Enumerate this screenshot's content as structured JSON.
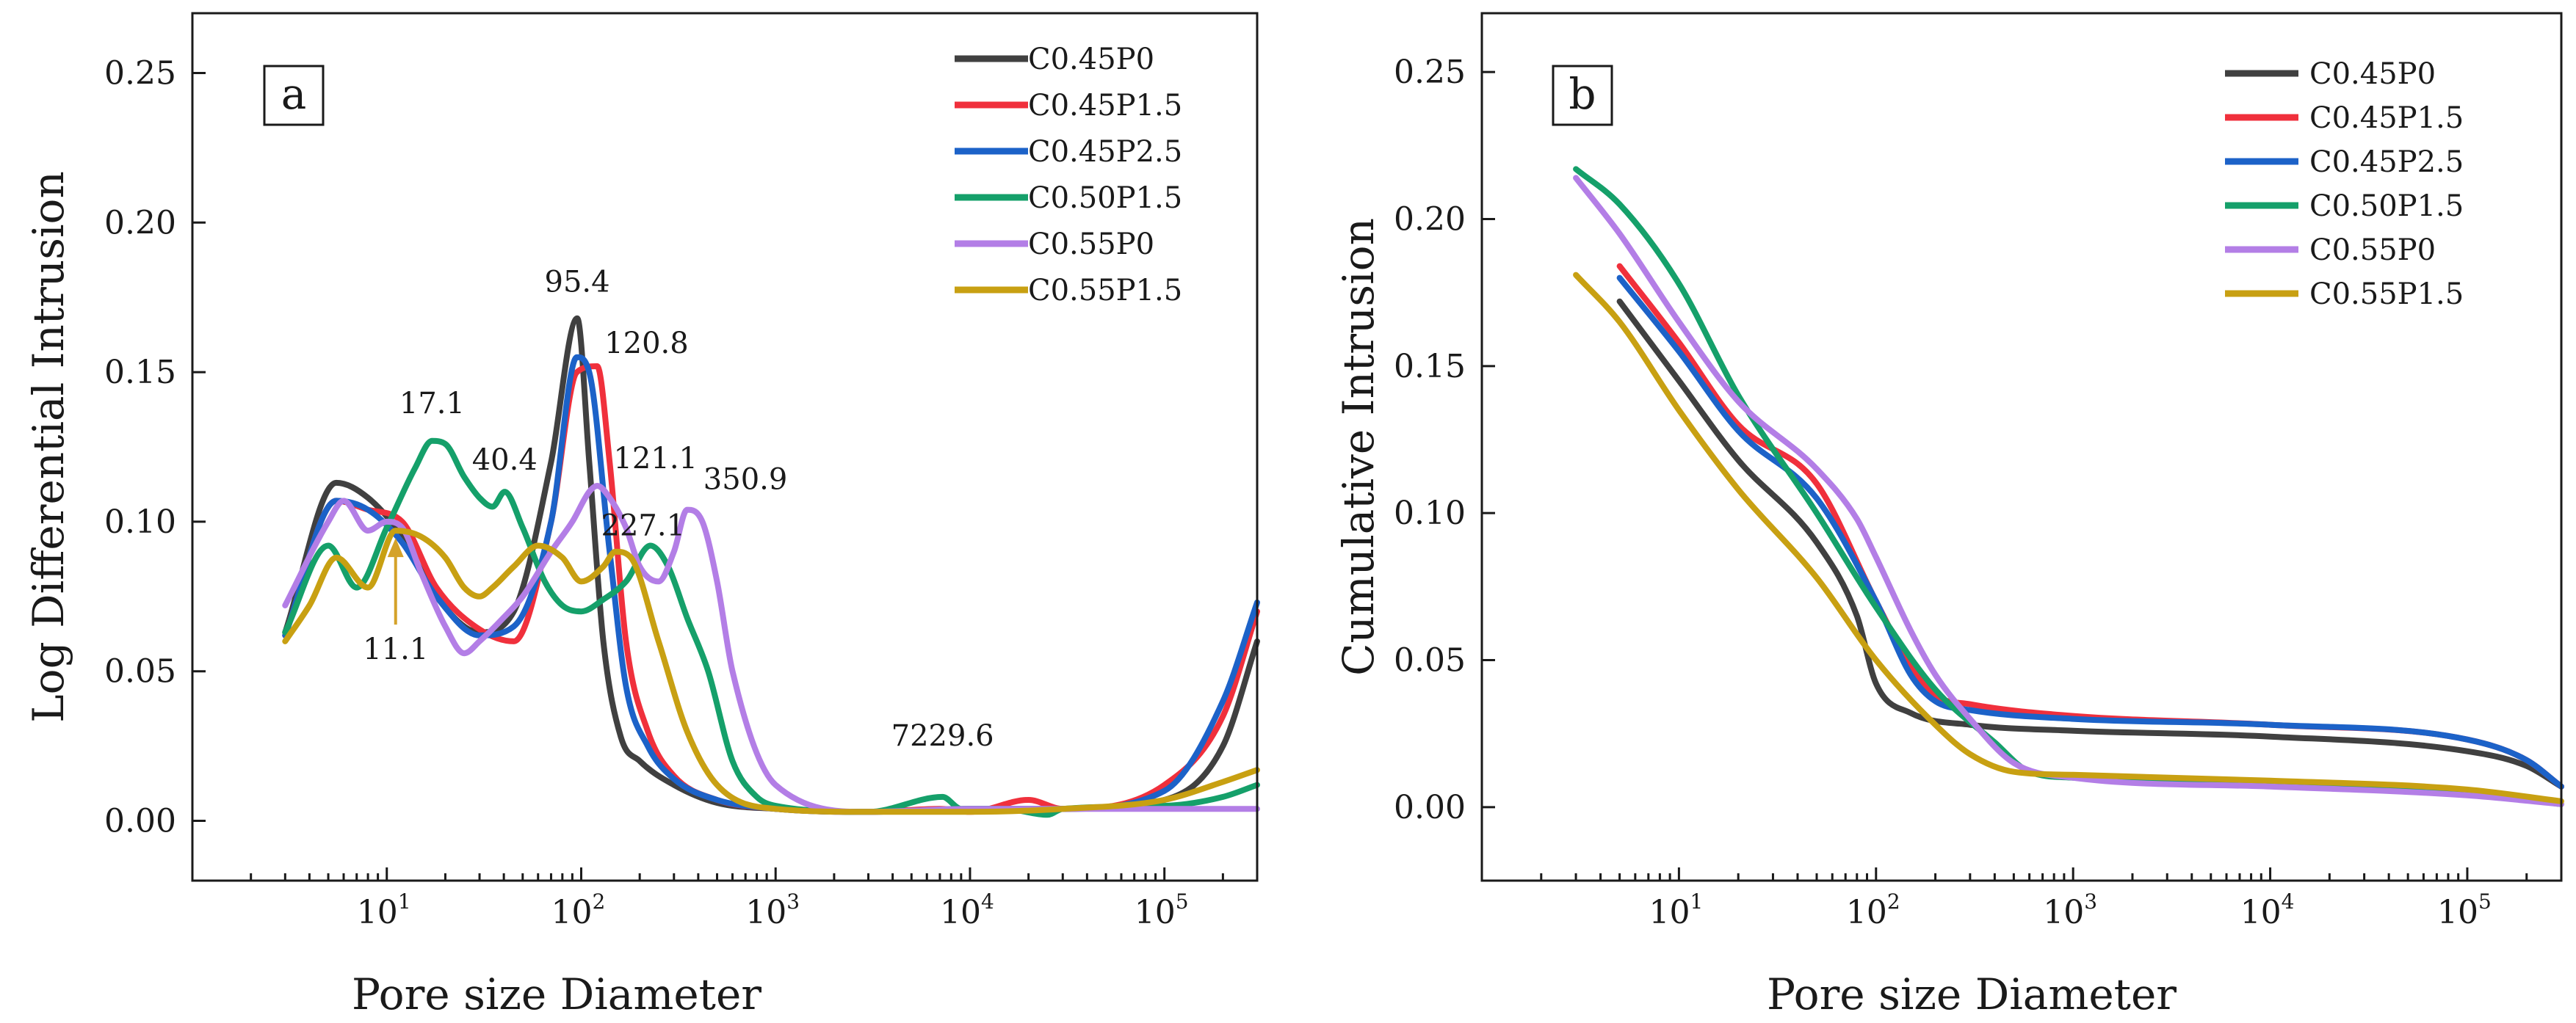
{
  "colors": {
    "C0.45P0": "#404040",
    "C0.45P1.5": "#f0303c",
    "C0.45P2.5": "#1c62c8",
    "C0.50P1.5": "#15a06a",
    "C0.55P0": "#b37ee6",
    "C0.55P1.5": "#c8a012",
    "arrow": "#d4a22a"
  },
  "chart_data": [
    {
      "type": "line",
      "panel": "a",
      "title": "",
      "xlabel": "Pore size Diameter",
      "ylabel": "Log Differential Intrusion",
      "xscale": "log",
      "xlim": [
        1,
        300000
      ],
      "ylim": [
        -0.02,
        0.27
      ],
      "xticks": [
        10,
        100,
        1000,
        10000,
        100000
      ],
      "xtick_labels": [
        {
          "base": "10",
          "exp": "1"
        },
        {
          "base": "10",
          "exp": "2"
        },
        {
          "base": "10",
          "exp": "3"
        },
        {
          "base": "10",
          "exp": "4"
        },
        {
          "base": "10",
          "exp": "5"
        }
      ],
      "yticks": [
        0.0,
        0.05,
        0.1,
        0.15,
        0.2,
        0.25
      ],
      "ytick_labels": [
        "0.00",
        "0.05",
        "0.10",
        "0.15",
        "0.20",
        "0.25"
      ],
      "legend": {
        "placement": "top-right",
        "entries": [
          "C0.45P0",
          "C0.45P1.5",
          "C0.45P2.5",
          "C0.50P1.5",
          "C0.55P0",
          "C0.55P1.5"
        ]
      },
      "annotations": [
        {
          "text": "95.4",
          "x": 95.4,
          "y": 0.168
        },
        {
          "text": "120.8",
          "x": 120.8,
          "y": 0.152
        },
        {
          "text": "17.1",
          "x": 17.1,
          "y": 0.127
        },
        {
          "text": "40.4",
          "x": 40.4,
          "y": 0.11
        },
        {
          "text": "121.1",
          "x": 121.1,
          "y": 0.112
        },
        {
          "text": "350.9",
          "x": 350.9,
          "y": 0.104
        },
        {
          "text": "227.1",
          "x": 227.1,
          "y": 0.092
        },
        {
          "text": "11.1",
          "x": 11.1,
          "y": 0.097,
          "arrow": true
        },
        {
          "text": "7229.6",
          "x": 7229.6,
          "y": 0.008
        }
      ],
      "series": [
        {
          "name": "C0.45P0",
          "x": [
            3,
            5.5,
            8,
            12,
            18,
            30,
            45,
            70,
            95.4,
            110,
            130,
            160,
            200,
            300,
            500,
            1000,
            3000,
            10000,
            30000,
            100000,
            200000,
            300000
          ],
          "y": [
            0.063,
            0.113,
            0.108,
            0.095,
            0.075,
            0.063,
            0.07,
            0.12,
            0.168,
            0.12,
            0.06,
            0.028,
            0.02,
            0.012,
            0.006,
            0.004,
            0.003,
            0.004,
            0.004,
            0.007,
            0.025,
            0.06
          ]
        },
        {
          "name": "C0.45P1.5",
          "x": [
            3,
            5.5,
            8,
            12,
            18,
            30,
            45,
            70,
            95,
            120.8,
            140,
            170,
            220,
            300,
            500,
            1000,
            3000,
            7000,
            10000,
            20000,
            30000,
            100000,
            200000,
            300000
          ],
          "y": [
            0.062,
            0.107,
            0.104,
            0.1,
            0.078,
            0.064,
            0.06,
            0.1,
            0.15,
            0.152,
            0.12,
            0.06,
            0.03,
            0.015,
            0.007,
            0.004,
            0.003,
            0.004,
            0.003,
            0.007,
            0.004,
            0.012,
            0.035,
            0.07
          ]
        },
        {
          "name": "C0.45P2.5",
          "x": [
            3,
            5.5,
            8,
            12,
            18,
            30,
            45,
            70,
            95,
            110,
            140,
            170,
            220,
            300,
            500,
            1000,
            3000,
            10000,
            30000,
            100000,
            200000,
            300000
          ],
          "y": [
            0.062,
            0.107,
            0.104,
            0.093,
            0.075,
            0.062,
            0.065,
            0.1,
            0.155,
            0.15,
            0.09,
            0.045,
            0.025,
            0.014,
            0.007,
            0.004,
            0.003,
            0.004,
            0.004,
            0.01,
            0.04,
            0.073
          ]
        },
        {
          "name": "C0.50P1.5",
          "x": [
            3,
            5,
            7,
            10,
            14,
            17.1,
            20,
            25,
            30,
            35,
            40.4,
            50,
            65,
            80,
            100,
            130,
            170,
            227.1,
            280,
            350,
            450,
            600,
            800,
            1000,
            3000,
            7229.6,
            9000,
            15000,
            25000,
            30000,
            100000,
            200000,
            300000
          ],
          "y": [
            0.063,
            0.092,
            0.078,
            0.098,
            0.118,
            0.127,
            0.126,
            0.115,
            0.108,
            0.105,
            0.11,
            0.098,
            0.08,
            0.072,
            0.07,
            0.074,
            0.08,
            0.092,
            0.085,
            0.068,
            0.05,
            0.02,
            0.008,
            0.005,
            0.003,
            0.008,
            0.004,
            0.004,
            0.002,
            0.004,
            0.005,
            0.008,
            0.012
          ]
        },
        {
          "name": "C0.55P0",
          "x": [
            3,
            5,
            6,
            8,
            10,
            12,
            15,
            20,
            25,
            30,
            40,
            50,
            70,
            90,
            110,
            121.1,
            140,
            170,
            200,
            250,
            300,
            350.9,
            420,
            500,
            600,
            1000,
            3000,
            10000,
            30000,
            100000,
            300000
          ],
          "y": [
            0.072,
            0.1,
            0.107,
            0.097,
            0.1,
            0.098,
            0.083,
            0.065,
            0.056,
            0.06,
            0.068,
            0.075,
            0.09,
            0.1,
            0.11,
            0.112,
            0.108,
            0.098,
            0.085,
            0.08,
            0.09,
            0.104,
            0.1,
            0.08,
            0.05,
            0.012,
            0.003,
            0.004,
            0.004,
            0.004,
            0.004
          ]
        },
        {
          "name": "C0.55P1.5",
          "x": [
            3,
            4,
            5.5,
            8,
            11.1,
            15,
            20,
            25,
            30,
            35,
            45,
            60,
            80,
            100,
            130,
            150,
            180,
            250,
            350,
            500,
            1000,
            3000,
            10000,
            30000,
            100000,
            200000,
            300000
          ],
          "y": [
            0.06,
            0.072,
            0.088,
            0.078,
            0.097,
            0.095,
            0.088,
            0.078,
            0.075,
            0.078,
            0.085,
            0.092,
            0.088,
            0.08,
            0.085,
            0.09,
            0.088,
            0.06,
            0.03,
            0.012,
            0.004,
            0.003,
            0.003,
            0.004,
            0.007,
            0.013,
            0.017
          ]
        }
      ]
    },
    {
      "type": "line",
      "panel": "b",
      "title": "",
      "xlabel": "Pore size Diameter",
      "ylabel": "Cumulative Intrusion",
      "xscale": "log",
      "xlim": [
        1,
        300000
      ],
      "ylim": [
        -0.025,
        0.27
      ],
      "xticks": [
        10,
        100,
        1000,
        10000,
        100000
      ],
      "xtick_labels": [
        {
          "base": "10",
          "exp": "1"
        },
        {
          "base": "10",
          "exp": "2"
        },
        {
          "base": "10",
          "exp": "3"
        },
        {
          "base": "10",
          "exp": "4"
        },
        {
          "base": "10",
          "exp": "5"
        }
      ],
      "yticks": [
        0.0,
        0.05,
        0.1,
        0.15,
        0.2,
        0.25
      ],
      "ytick_labels": [
        "0.00",
        "0.05",
        "0.10",
        "0.15",
        "0.20",
        "0.25"
      ],
      "legend": {
        "placement": "top-right",
        "entries": [
          "C0.45P0",
          "C0.45P1.5",
          "C0.45P2.5",
          "C0.50P1.5",
          "C0.55P0",
          "C0.55P1.5"
        ]
      },
      "series": [
        {
          "name": "C0.45P0",
          "x": [
            5,
            10,
            20,
            50,
            80,
            100,
            150,
            300,
            1000,
            10000,
            100000,
            200000,
            300000
          ],
          "y": [
            0.172,
            0.145,
            0.118,
            0.09,
            0.065,
            0.042,
            0.032,
            0.028,
            0.026,
            0.024,
            0.019,
            0.014,
            0.007
          ]
        },
        {
          "name": "C0.45P1.5",
          "x": [
            5,
            10,
            20,
            50,
            100,
            150,
            200,
            300,
            1000,
            10000,
            100000,
            200000,
            300000
          ],
          "y": [
            0.184,
            0.158,
            0.13,
            0.11,
            0.07,
            0.048,
            0.038,
            0.035,
            0.031,
            0.028,
            0.023,
            0.016,
            0.007
          ]
        },
        {
          "name": "C0.45P2.5",
          "x": [
            5,
            10,
            20,
            50,
            100,
            150,
            200,
            300,
            1000,
            10000,
            100000,
            200000,
            300000
          ],
          "y": [
            0.18,
            0.155,
            0.128,
            0.105,
            0.07,
            0.045,
            0.036,
            0.033,
            0.03,
            0.028,
            0.023,
            0.016,
            0.007
          ]
        },
        {
          "name": "C0.50P1.5",
          "x": [
            3,
            5,
            10,
            20,
            50,
            100,
            200,
            400,
            600,
            1000,
            10000,
            100000,
            300000
          ],
          "y": [
            0.217,
            0.205,
            0.178,
            0.14,
            0.1,
            0.068,
            0.04,
            0.022,
            0.012,
            0.01,
            0.008,
            0.005,
            0.001
          ]
        },
        {
          "name": "C0.55P0",
          "x": [
            3,
            5,
            10,
            20,
            50,
            80,
            100,
            150,
            200,
            300,
            500,
            1000,
            10000,
            100000,
            300000
          ],
          "y": [
            0.214,
            0.195,
            0.165,
            0.138,
            0.115,
            0.098,
            0.085,
            0.06,
            0.045,
            0.03,
            0.015,
            0.01,
            0.007,
            0.004,
            0.001
          ]
        },
        {
          "name": "C0.55P1.5",
          "x": [
            3,
            5,
            10,
            20,
            50,
            100,
            200,
            300,
            500,
            1000,
            10000,
            100000,
            300000
          ],
          "y": [
            0.181,
            0.165,
            0.135,
            0.108,
            0.078,
            0.05,
            0.028,
            0.018,
            0.012,
            0.011,
            0.009,
            0.006,
            0.002
          ]
        }
      ]
    }
  ]
}
